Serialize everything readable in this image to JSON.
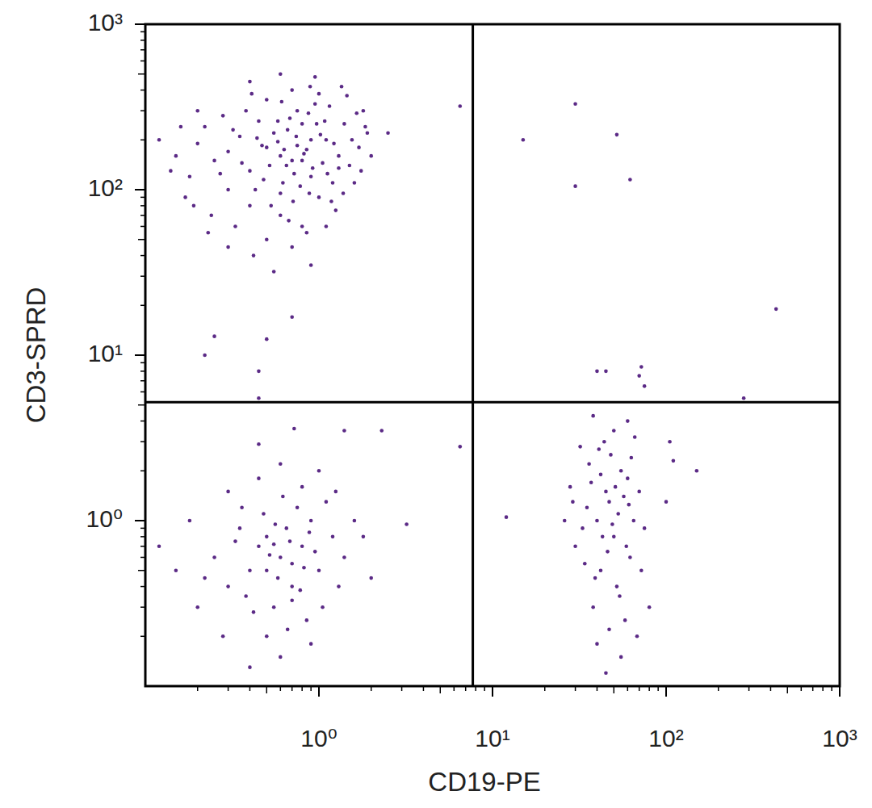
{
  "chart_data": {
    "type": "scatter",
    "x_label": "CD19-PE",
    "y_label": "CD3-SPRD",
    "log": true,
    "color": "#5b2a86",
    "marker": "dot",
    "xlim": [
      0.1,
      1000
    ],
    "ylim": [
      0.1,
      1000
    ],
    "xticks": [
      {
        "value": 1,
        "label": "10⁰"
      },
      {
        "value": 10,
        "label": "10¹"
      },
      {
        "value": 100,
        "label": "10²"
      },
      {
        "value": 1000,
        "label": "10³"
      }
    ],
    "yticks": [
      {
        "value": 1,
        "label": "10⁰"
      },
      {
        "value": 10,
        "label": "10¹"
      },
      {
        "value": 100,
        "label": "10²"
      },
      {
        "value": 1000,
        "label": "10³"
      }
    ],
    "quadrant_lines": {
      "x": 7.7,
      "y": 5.2
    },
    "x": [
      0.7,
      0.5,
      0.9,
      1.1,
      0.6,
      0.8,
      0.4,
      1.3,
      0.3,
      0.55,
      0.75,
      1.0,
      0.65,
      0.85,
      0.45,
      1.2,
      0.35,
      0.95,
      0.6,
      1.5,
      0.25,
      0.2,
      0.15,
      0.7,
      0.5,
      1.0,
      0.8,
      0.4,
      1.4,
      1.7,
      1.8,
      0.3,
      0.22,
      0.18,
      0.9,
      0.6,
      0.72,
      1.05,
      0.48,
      0.58,
      0.88,
      0.66,
      1.25,
      0.38,
      0.28,
      0.5,
      0.7,
      1.1,
      0.95,
      0.6,
      0.4,
      1.35,
      1.6,
      1.9,
      2.0,
      0.12,
      0.14,
      0.17,
      0.24,
      0.33,
      0.42,
      0.9,
      0.55,
      0.8,
      0.75,
      0.62,
      0.68,
      1.15,
      1.45,
      0.52,
      0.82,
      0.47,
      1.02,
      0.78,
      0.58,
      0.36,
      1.22,
      0.92,
      0.44,
      0.71,
      1.12,
      0.63,
      0.87,
      0.27,
      0.32,
      1.55,
      1.3,
      0.53,
      0.97,
      0.74,
      0.2,
      0.16,
      1.65,
      1.38,
      0.43,
      0.67,
      0.85,
      1.18,
      0.3,
      0.23,
      0.19,
      1.75,
      1.85,
      0.61,
      0.89,
      1.08,
      0.41,
      0.6,
      0.5,
      0.7,
      0.8,
      0.4,
      0.9,
      0.55,
      0.65,
      0.45,
      1.0,
      0.35,
      0.3,
      1.2,
      0.75,
      0.5,
      0.6,
      0.25,
      0.2,
      0.15,
      1.4,
      1.1,
      0.85,
      0.7,
      0.58,
      0.48,
      0.38,
      0.95,
      0.68,
      0.52,
      0.42,
      1.3,
      0.8,
      0.6,
      0.45,
      1.0,
      0.3,
      1.6,
      1.8,
      2.0,
      0.9,
      0.4,
      0.72,
      0.45,
      0.28,
      0.18,
      0.12,
      0.22,
      0.33,
      0.62,
      0.78,
      0.88,
      1.05,
      0.56,
      0.66,
      0.5,
      1.25,
      0.36,
      0.82,
      0.7,
      0.55,
      40,
      45,
      50,
      35,
      55,
      42,
      60,
      38,
      48,
      65,
      30,
      70,
      44,
      52,
      58,
      36,
      47,
      62,
      33,
      28,
      75,
      40,
      55,
      45,
      68,
      50,
      60,
      38,
      32,
      42,
      53,
      46,
      39,
      57,
      63,
      72,
      26,
      34,
      49,
      41,
      66,
      29,
      54,
      43,
      37,
      59,
      80,
      47,
      61,
      51,
      6.5,
      2.5,
      15,
      30,
      30,
      52,
      62,
      430,
      40,
      45,
      72,
      70,
      75,
      280,
      0.45,
      0.45,
      0.22,
      0.5,
      0.7,
      0.25,
      12,
      6.5,
      2.3,
      3.2,
      105,
      110,
      150,
      100,
      1.4
    ],
    "y": [
      150,
      180,
      120,
      200,
      95,
      250,
      130,
      160,
      170,
      220,
      300,
      90,
      140,
      175,
      260,
      110,
      210,
      330,
      70,
      140,
      150,
      190,
      160,
      400,
      350,
      380,
      60,
      80,
      250,
      180,
      300,
      100,
      240,
      120,
      200,
      160,
      125,
      145,
      115,
      195,
      95,
      230,
      75,
      300,
      280,
      50,
      45,
      60,
      480,
      500,
      450,
      420,
      110,
      220,
      160,
      200,
      130,
      90,
      70,
      60,
      40,
      35,
      32,
      150,
      185,
      110,
      270,
      320,
      370,
      140,
      165,
      185,
      215,
      105,
      260,
      145,
      190,
      135,
      205,
      85,
      125,
      175,
      290,
      125,
      230,
      200,
      135,
      80,
      250,
      210,
      300,
      240,
      290,
      95,
      100,
      65,
      55,
      85,
      45,
      55,
      80,
      130,
      240,
      340,
      420,
      260,
      380,
      0.6,
      0.8,
      0.4,
      0.7,
      0.5,
      1.0,
      0.3,
      0.9,
      0.7,
      0.5,
      0.9,
      0.4,
      0.8,
      1.2,
      0.2,
      0.15,
      0.6,
      0.3,
      0.5,
      0.6,
      1.3,
      0.25,
      0.55,
      0.45,
      1.1,
      0.35,
      0.65,
      0.75,
      0.62,
      0.28,
      0.4,
      1.6,
      2.2,
      1.8,
      2.0,
      1.5,
      1.0,
      0.8,
      0.45,
      0.18,
      0.13,
      3.6,
      2.9,
      0.2,
      1.0,
      0.7,
      0.45,
      0.75,
      1.4,
      0.38,
      0.85,
      0.3,
      0.95,
      0.22,
      0.5,
      1.5,
      1.2,
      0.52,
      0.33,
      0.72,
      1.0,
      1.5,
      0.8,
      1.2,
      2.0,
      0.5,
      1.8,
      0.3,
      2.5,
      1.0,
      0.7,
      1.5,
      3.0,
      0.4,
      0.25,
      2.2,
      1.3,
      0.6,
      0.9,
      1.6,
      0.9,
      0.18,
      0.15,
      0.12,
      0.2,
      3.5,
      4.0,
      4.3,
      2.8,
      1.9,
      1.1,
      0.65,
      0.45,
      1.4,
      2.4,
      0.5,
      1.0,
      0.55,
      0.95,
      2.7,
      3.2,
      1.3,
      0.35,
      0.8,
      1.7,
      0.7,
      0.3,
      0.22,
      1.25,
      1.6,
      320,
      220,
      200,
      330,
      105,
      215,
      115,
      19,
      8,
      8,
      8.5,
      7.5,
      6.5,
      5.5,
      8,
      5.5,
      10,
      12.5,
      17,
      13,
      1.05,
      2.8,
      3.5,
      0.95,
      3,
      2.3,
      2,
      1.3,
      3.5
    ]
  }
}
